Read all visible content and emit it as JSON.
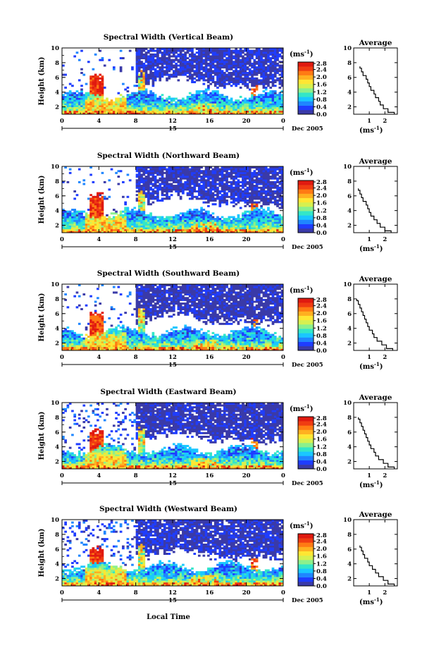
{
  "figure": {
    "xlabel": "Local Time",
    "date_label": "Dec 2005",
    "day_label": "15",
    "unit_label": "(ms",
    "unit_sup": "-1",
    "unit_close": ")"
  },
  "colorbar": {
    "ticks": [
      "2.8",
      "2.4",
      "2.0",
      "1.6",
      "1.2",
      "0.8",
      "0.4",
      "0.0"
    ],
    "colors": [
      "#3a3aa8",
      "#1f3dff",
      "#1f86ff",
      "#1ac7ff",
      "#33e6c8",
      "#8cf08c",
      "#d6f050",
      "#ffe633",
      "#ffb020",
      "#ff7a14",
      "#f03c12",
      "#e01a10"
    ]
  },
  "chart_data": [
    {
      "type": "heatmap",
      "title": "Spectral Width (Vertical Beam)",
      "ylabel": "Height (km)",
      "xlim": [
        0,
        24
      ],
      "ylim": [
        1,
        10
      ],
      "xticks": [
        "0",
        "4",
        "8",
        "12",
        "16",
        "20",
        "0"
      ],
      "yticks": [
        "2",
        "4",
        "6",
        "8",
        "10"
      ],
      "zlim": [
        0,
        2.8
      ],
      "profile": {
        "title": "Average",
        "xlim": [
          0,
          2.8
        ],
        "xticks": [
          "1",
          "2"
        ],
        "yticks": [
          "2",
          "4",
          "6",
          "8",
          "10"
        ],
        "height": [
          1.0,
          1.5,
          2.0,
          2.5,
          3.0,
          3.5,
          4.0,
          4.5,
          5.0,
          5.5,
          6.0,
          6.5,
          7.0,
          7.5
        ],
        "width": [
          2.6,
          2.2,
          1.9,
          1.7,
          1.6,
          1.4,
          1.3,
          1.1,
          1.0,
          0.9,
          0.8,
          0.6,
          0.5,
          0.4
        ]
      }
    },
    {
      "type": "heatmap",
      "title": "Spectral Width (Northward Beam)",
      "ylabel": "Height (km)",
      "xlim": [
        0,
        24
      ],
      "ylim": [
        1,
        10
      ],
      "xticks": [
        "0",
        "4",
        "8",
        "12",
        "16",
        "20",
        "0"
      ],
      "yticks": [
        "2",
        "4",
        "6",
        "8",
        "10"
      ],
      "zlim": [
        0,
        2.8
      ],
      "profile": {
        "title": "Average",
        "xlim": [
          0,
          2.8
        ],
        "xticks": [
          "1",
          "2"
        ],
        "yticks": [
          "2",
          "4",
          "6",
          "8",
          "10"
        ],
        "height": [
          1.0,
          1.5,
          2.0,
          2.5,
          3.0,
          3.5,
          4.0,
          4.5,
          5.0,
          5.5,
          6.0,
          6.5,
          7.0
        ],
        "width": [
          2.4,
          2.0,
          1.7,
          1.5,
          1.3,
          1.1,
          1.0,
          0.9,
          0.8,
          0.6,
          0.5,
          0.4,
          0.3
        ]
      }
    },
    {
      "type": "heatmap",
      "title": "Spectral Width (Southward Beam)",
      "ylabel": "Height (km)",
      "xlim": [
        0,
        24
      ],
      "ylim": [
        1,
        10
      ],
      "xticks": [
        "0",
        "4",
        "8",
        "12",
        "16",
        "20",
        "0"
      ],
      "yticks": [
        "2",
        "4",
        "6",
        "8",
        "10"
      ],
      "zlim": [
        0,
        2.8
      ],
      "profile": {
        "title": "Average",
        "xlim": [
          0,
          2.8
        ],
        "xticks": [
          "1",
          "2"
        ],
        "yticks": [
          "2",
          "4",
          "6",
          "8",
          "10"
        ],
        "height": [
          1.0,
          1.5,
          2.0,
          2.5,
          3.0,
          3.5,
          4.0,
          4.5,
          5.0,
          5.5,
          6.0,
          6.5,
          7.0,
          7.5,
          8.0
        ],
        "width": [
          2.5,
          2.1,
          1.8,
          1.5,
          1.3,
          1.2,
          1.0,
          0.9,
          0.8,
          0.7,
          0.6,
          0.5,
          0.4,
          0.3,
          0.2
        ]
      }
    },
    {
      "type": "heatmap",
      "title": "Spectral Width (Eastward Beam)",
      "ylabel": "Height (km)",
      "xlim": [
        0,
        24
      ],
      "ylim": [
        1,
        10
      ],
      "xticks": [
        "0",
        "4",
        "8",
        "12",
        "16",
        "20",
        "0"
      ],
      "yticks": [
        "2",
        "4",
        "6",
        "8",
        "10"
      ],
      "zlim": [
        0,
        2.8
      ],
      "profile": {
        "title": "Average",
        "xlim": [
          0,
          2.8
        ],
        "xticks": [
          "1",
          "2"
        ],
        "yticks": [
          "2",
          "4",
          "6",
          "8",
          "10"
        ],
        "height": [
          1.0,
          1.5,
          2.0,
          2.5,
          3.0,
          3.5,
          4.0,
          4.5,
          5.0,
          5.5,
          6.0,
          6.5,
          7.0,
          7.5,
          8.0
        ],
        "width": [
          2.6,
          2.2,
          1.9,
          1.6,
          1.4,
          1.3,
          1.1,
          1.0,
          0.9,
          0.8,
          0.7,
          0.6,
          0.5,
          0.4,
          0.3
        ]
      }
    },
    {
      "type": "heatmap",
      "title": "Spectral Width (Westward Beam)",
      "ylabel": "Height (km)",
      "xlim": [
        0,
        24
      ],
      "ylim": [
        1,
        10
      ],
      "xticks": [
        "0",
        "4",
        "8",
        "12",
        "16",
        "20",
        "0"
      ],
      "yticks": [
        "2",
        "4",
        "6",
        "8",
        "10"
      ],
      "zlim": [
        0,
        2.8
      ],
      "profile": {
        "title": "Average",
        "xlim": [
          0,
          2.8
        ],
        "xticks": [
          "1",
          "2"
        ],
        "yticks": [
          "2",
          "4",
          "6",
          "8",
          "10"
        ],
        "height": [
          1.0,
          1.5,
          2.0,
          2.5,
          3.0,
          3.5,
          4.0,
          4.5,
          5.0,
          5.5,
          6.0,
          6.5
        ],
        "width": [
          2.6,
          2.2,
          1.9,
          1.6,
          1.4,
          1.2,
          1.0,
          0.9,
          0.7,
          0.6,
          0.5,
          0.4
        ]
      }
    }
  ]
}
